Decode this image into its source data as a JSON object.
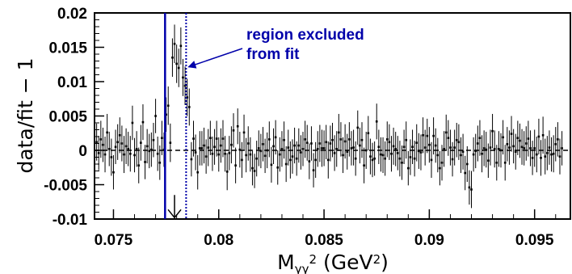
{
  "chart_data": {
    "type": "scatter",
    "title": "",
    "xlabel": {
      "base": "M",
      "subscript": "γγ",
      "superscript": "2",
      "unit_open": " (GeV",
      "unit_sup": "2",
      "unit_close": ")"
    },
    "ylabel": "data/fit − 1",
    "xlim": [
      0.0741,
      0.0967
    ],
    "ylim": [
      -0.01,
      0.02
    ],
    "x_ticks": [
      0.075,
      0.08,
      0.085,
      0.09,
      0.095
    ],
    "x_tick_labels": [
      "0.075",
      "0.08",
      "0.085",
      "0.09",
      "0.095"
    ],
    "y_ticks": [
      -0.01,
      -0.005,
      0,
      0.005,
      0.01,
      0.015,
      0.02
    ],
    "y_tick_labels": [
      "-0.01",
      "-0.005",
      "0",
      "0.005",
      "0.01",
      "0.015",
      "0.02"
    ],
    "grid": false,
    "legend": "none",
    "reference_line_y": 0,
    "excluded_region": {
      "x_range": [
        0.07745,
        0.07845
      ],
      "color": "#0000aa",
      "label_lines": [
        "region excluded",
        "from fit"
      ],
      "arrow_target_x": 0.07845,
      "arrow_target_y": 0.0125
    },
    "marker_arrow": {
      "x": 0.0779,
      "y_from": -0.0065,
      "y_to": -0.0098
    },
    "point_spacing": 0.0001,
    "series": [
      {
        "x_start": 0.0742,
        "x_step": 0.0001,
        "y": [
          0.0012,
          -0.0004,
          0.0016,
          0.0008,
          -0.0006,
          0.0026,
          0.0002,
          -0.001,
          -0.0032,
          0.0005,
          0.0012,
          0.0022,
          0.001,
          -0.0006,
          0.0006,
          0.0002,
          -0.0005,
          0.004,
          -0.0007,
          0.0002,
          -0.0022,
          0.0011,
          0.0041,
          -0.0017,
          0.0006,
          -0.0001,
          0.0001,
          0.0015,
          0.005,
          -0.0005,
          -0.0018,
          0.0018,
          0.0001,
          0.0052,
          0.0065,
          0.0011,
          0.0135,
          0.0155,
          0.0126,
          0.012,
          0.0152,
          0.0106,
          0.0094,
          0.0077,
          0.0063,
          -0.0013,
          0.0017,
          -0.0003,
          -0.0032,
          0.0003,
          0.0003,
          0.0007,
          -0.0009,
          0.0004,
          0.0018,
          -0.0005,
          0.0005,
          0.0017,
          -0.0006,
          0.0007,
          0.0017,
          -0.0005,
          -0.0031,
          -0.0004,
          0.0008,
          0.0029,
          -0.0022,
          0.0035,
          0.0001,
          -0.0014,
          0.0026,
          -0.0007,
          0.001,
          -0.0006,
          -0.0026,
          -0.003,
          -0.0012,
          0.0003,
          -0.0001,
          0.0009,
          -0.0008,
          0.0,
          0.0016,
          -0.0021,
          0.0006,
          0.0019,
          -0.0025,
          -0.0006,
          0.0002,
          0.0015,
          -0.002,
          0.0004,
          -0.0014,
          -0.0009,
          0.0007,
          -0.0012,
          0.0007,
          -0.0003,
          0.0002,
          0.0016,
          0.0011,
          -0.0016,
          0.001,
          -0.0029,
          -0.0014,
          0.0002,
          0.001,
          0.0003,
          0.0003,
          0.0012,
          -0.0014,
          0.001,
          0.0015,
          -0.0004,
          0.0002,
          0.0026,
          0.0016,
          -0.0007,
          0.0013,
          -0.0002,
          0.0016,
          0.0003,
          0.0004,
          -0.0012,
          0.0033,
          0.0007,
          0.0015,
          -0.0022,
          0.0,
          0.0025,
          -0.0009,
          -0.0014,
          -0.0012,
          0.0042,
          0.0005,
          -0.0006,
          -0.0007,
          -0.0012,
          0.0016,
          0.0012,
          -0.0005,
          0.0006,
          0.0002,
          -0.0004,
          -0.0012,
          -0.0018,
          0.0005,
          0.0015,
          -0.0026,
          -0.001,
          0.0005,
          -0.0012,
          0.0011,
          -0.0001,
          -0.0003,
          0.0022,
          0.0004,
          0.0021,
          0.0008,
          -0.0014,
          0.0021,
          0.0007,
          -0.0007,
          -0.0026,
          -0.0018,
          0.0002,
          0.0026,
          0.0018,
          0.0004,
          -0.0013,
          0.0004,
          0.0015,
          0.0012,
          -0.0007,
          -0.0002,
          -0.0033,
          -0.002,
          -0.0054,
          -0.0057,
          -0.0006,
          -0.0001,
          0.001,
          0.0018,
          -0.0005,
          0.0003,
          0.0001,
          -0.0015,
          0.0004,
          0.0028,
          0.0002,
          -0.0018,
          0.0002,
          0.0,
          0.0019,
          -0.0018,
          0.0009,
          0.0004,
          0.0024,
          0.0006,
          -0.0002,
          0.0018,
          0.0014,
          0.0005,
          0.0003,
          0.001,
          0.0017,
          0.0003,
          -0.0011,
          0.0003,
          -0.0006,
          0.002,
          -0.0011,
          0.0022,
          -0.0009,
          -0.0004,
          0.0004,
          -0.0006,
          -0.0005,
          0.0009,
          0.0016,
          -0.0009,
          0.0003
        ],
        "error": [
          0.0027,
          0.0025,
          0.0027,
          0.0025,
          0.0026,
          0.0027,
          0.0025,
          0.0027,
          0.0025,
          0.0025,
          0.0026,
          0.0026,
          0.0026,
          0.0027,
          0.0026,
          0.0025,
          0.0026,
          0.0025,
          0.0025,
          0.0026,
          0.0026,
          0.0026,
          0.0026,
          0.0025,
          0.0025,
          0.0025,
          0.0025,
          0.0025,
          0.0025,
          0.0025,
          0.0025,
          0.0025,
          0.0025,
          0.0025,
          0.0028,
          0.0028,
          0.0028,
          0.0028,
          0.0028,
          0.0028,
          0.0027,
          0.0027,
          0.0028,
          0.0027,
          0.0027,
          0.0025,
          0.0026,
          0.0026,
          0.0025,
          0.0025,
          0.0025,
          0.0026,
          0.0025,
          0.0027,
          0.0025,
          0.0025,
          0.0026,
          0.0026,
          0.0025,
          0.0025,
          0.0027,
          0.0026,
          0.0027,
          0.0025,
          0.0027,
          0.0025,
          0.0026,
          0.0026,
          0.0026,
          0.0026,
          0.0026,
          0.0025,
          0.0025,
          0.0025,
          0.0025,
          0.0025,
          0.0026,
          0.0026,
          0.0025,
          0.0025,
          0.0025,
          0.0026,
          0.0026,
          0.0026,
          0.0026,
          0.0025,
          0.0025,
          0.0025,
          0.0026,
          0.0027,
          0.0026,
          0.0026,
          0.0027,
          0.0025,
          0.0026,
          0.0025,
          0.0025,
          0.0025,
          0.0025,
          0.0027,
          0.0026,
          0.0026,
          0.0025,
          0.0025,
          0.0026,
          0.0026,
          0.0027,
          0.0027,
          0.0026,
          0.0025,
          0.0027,
          0.0026,
          0.0025,
          0.0026,
          0.0026,
          0.0027,
          0.0025,
          0.0026,
          0.0025,
          0.0026,
          0.0025,
          0.0025,
          0.0026,
          0.0025,
          0.0025,
          0.0026,
          0.0026,
          0.0026,
          0.0027,
          0.0025,
          0.0026,
          0.0025,
          0.0025,
          0.0026,
          0.0025,
          0.0025,
          0.0026,
          0.0025,
          0.0026,
          0.0026,
          0.0026,
          0.0027,
          0.0025,
          0.0025,
          0.0026,
          0.0025,
          0.0025,
          0.0027,
          0.0025,
          0.0026,
          0.0025,
          0.0026,
          0.0027,
          0.0026,
          0.0026,
          0.0026,
          0.0026,
          0.0025,
          0.0026,
          0.0026,
          0.0027,
          0.0025,
          0.0025,
          0.0025,
          0.0026,
          0.0026,
          0.0026,
          0.0026,
          0.0026,
          0.0025,
          0.0026,
          0.0025,
          0.0026,
          0.0026,
          0.0026,
          0.0025,
          0.0026,
          0.0025,
          0.0027,
          0.0025,
          0.0025,
          0.0026,
          0.0026,
          0.0027,
          0.0026,
          0.0026,
          0.0025,
          0.0026,
          0.0025,
          0.0027,
          0.0026,
          0.0026,
          0.0025,
          0.0025,
          0.0026,
          0.0025,
          0.0025,
          0.0026,
          0.0025,
          0.0026,
          0.0025,
          0.0025,
          0.0026,
          0.0025,
          0.0025,
          0.0026,
          0.0026,
          0.0025,
          0.0027,
          0.0026,
          0.0026,
          0.0026,
          0.0027,
          0.0026,
          0.0025,
          0.0025,
          0.0025,
          0.0027,
          0.0025,
          0.0025,
          0.0026,
          0.0025
        ]
      }
    ]
  }
}
